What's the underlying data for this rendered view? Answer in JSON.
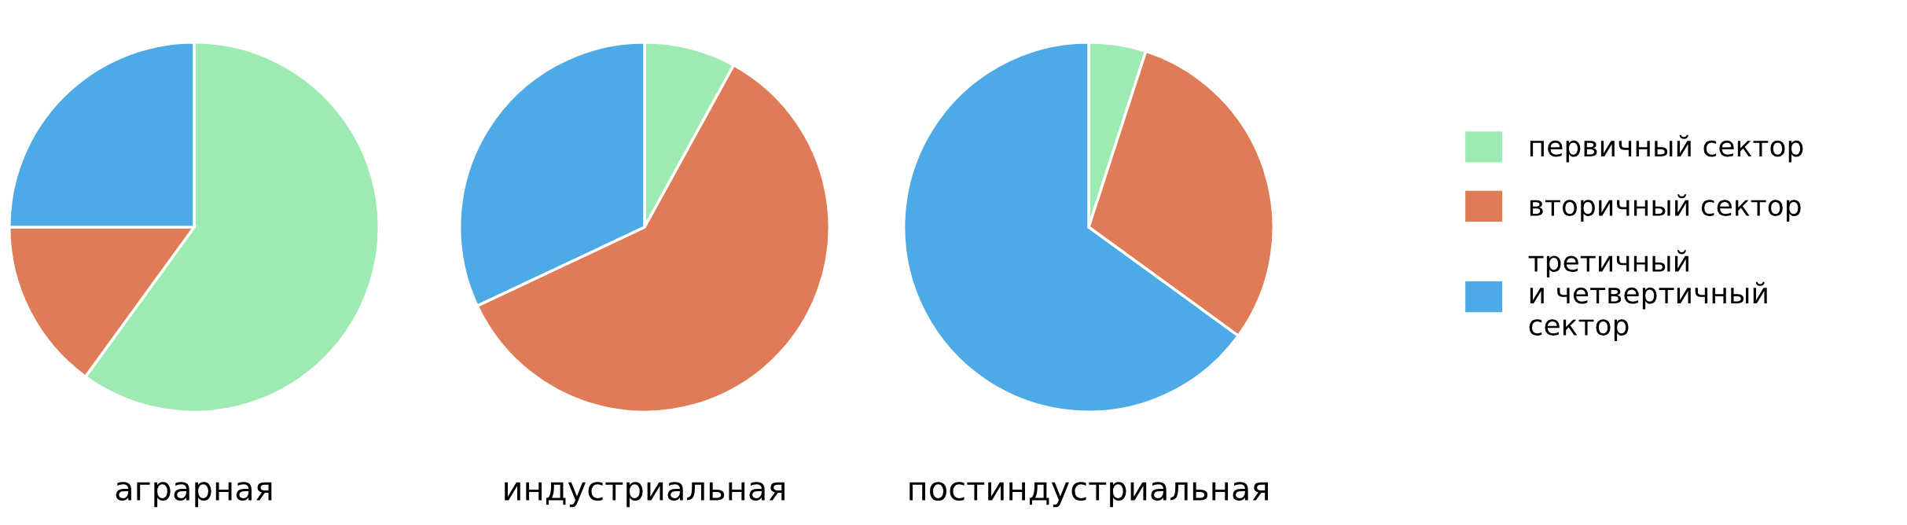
{
  "chart_data": [
    {
      "type": "pie",
      "title": "аграрная",
      "categories": [
        "первичный сектор",
        "вторичный сектор",
        "третичный\nи четвертичный\nсектор"
      ],
      "values": [
        60,
        15,
        25
      ],
      "colors": [
        "#9debb2",
        "#df7b56",
        "#4eaae6"
      ],
      "legend": "right"
    },
    {
      "type": "pie",
      "title": "индустриальная",
      "categories": [
        null,
        null,
        null
      ],
      "values": [
        8,
        60,
        32
      ],
      "colors": [
        "#9debb2",
        "#df7b56",
        "#4eaae6"
      ]
    },
    {
      "type": "pie",
      "title": "постиндустриальная",
      "categories": [
        null,
        null,
        null
      ],
      "values": [
        5,
        30,
        65
      ],
      "colors": [
        "#9debb2",
        "#df7b56",
        "#4eaae6"
      ]
    }
  ]
}
